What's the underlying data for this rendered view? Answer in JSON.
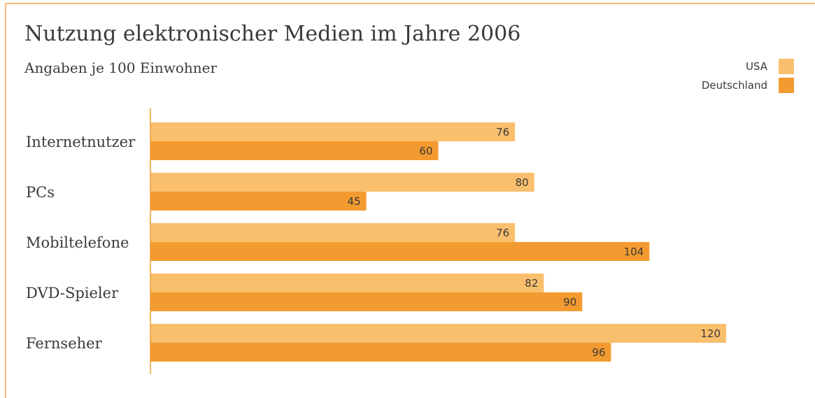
{
  "chart_data": {
    "type": "bar",
    "orientation": "horizontal",
    "title": "Nutzung elektronischer Medien im Jahre 2006",
    "subtitle": "Angaben je 100 Einwohner",
    "categories": [
      "Internetnutzer",
      "PCs",
      "Mobiltelefone",
      "DVD-Spieler",
      "Fernseher"
    ],
    "series": [
      {
        "name": "USA",
        "color": "#f9bf6d",
        "values": [
          76,
          80,
          76,
          82,
          120
        ]
      },
      {
        "name": "Deutschland",
        "color": "#f39b30",
        "values": [
          60,
          45,
          104,
          90,
          96
        ]
      }
    ],
    "legend": "top-right"
  }
}
